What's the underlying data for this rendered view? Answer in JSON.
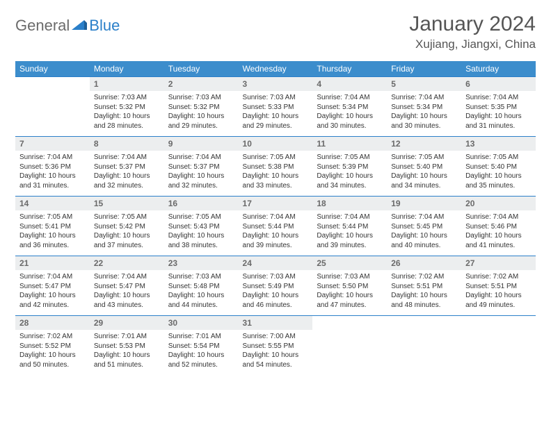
{
  "brand": {
    "part1": "General",
    "part2": "Blue",
    "icon_color": "#2a7fc9",
    "text_color_1": "#6b6b6b"
  },
  "title": "January 2024",
  "location": "Xujiang, Jiangxi, China",
  "colors": {
    "header_bg": "#3c8dcc",
    "header_fg": "#ffffff",
    "daynum_bg": "#eceeef",
    "daynum_fg": "#6a6a6a",
    "rule": "#2a7fc9",
    "body_text": "#333333",
    "background": "#ffffff"
  },
  "typography": {
    "title_fontsize": 30,
    "location_fontsize": 17,
    "header_fontsize": 12,
    "daynum_fontsize": 12,
    "cell_fontsize": 10
  },
  "weekdays": [
    "Sunday",
    "Monday",
    "Tuesday",
    "Wednesday",
    "Thursday",
    "Friday",
    "Saturday"
  ],
  "start_offset": 1,
  "days": [
    {
      "n": "1",
      "sunrise": "7:03 AM",
      "sunset": "5:32 PM",
      "daylight": "10 hours and 28 minutes."
    },
    {
      "n": "2",
      "sunrise": "7:03 AM",
      "sunset": "5:32 PM",
      "daylight": "10 hours and 29 minutes."
    },
    {
      "n": "3",
      "sunrise": "7:03 AM",
      "sunset": "5:33 PM",
      "daylight": "10 hours and 29 minutes."
    },
    {
      "n": "4",
      "sunrise": "7:04 AM",
      "sunset": "5:34 PM",
      "daylight": "10 hours and 30 minutes."
    },
    {
      "n": "5",
      "sunrise": "7:04 AM",
      "sunset": "5:34 PM",
      "daylight": "10 hours and 30 minutes."
    },
    {
      "n": "6",
      "sunrise": "7:04 AM",
      "sunset": "5:35 PM",
      "daylight": "10 hours and 31 minutes."
    },
    {
      "n": "7",
      "sunrise": "7:04 AM",
      "sunset": "5:36 PM",
      "daylight": "10 hours and 31 minutes."
    },
    {
      "n": "8",
      "sunrise": "7:04 AM",
      "sunset": "5:37 PM",
      "daylight": "10 hours and 32 minutes."
    },
    {
      "n": "9",
      "sunrise": "7:04 AM",
      "sunset": "5:37 PM",
      "daylight": "10 hours and 32 minutes."
    },
    {
      "n": "10",
      "sunrise": "7:05 AM",
      "sunset": "5:38 PM",
      "daylight": "10 hours and 33 minutes."
    },
    {
      "n": "11",
      "sunrise": "7:05 AM",
      "sunset": "5:39 PM",
      "daylight": "10 hours and 34 minutes."
    },
    {
      "n": "12",
      "sunrise": "7:05 AM",
      "sunset": "5:40 PM",
      "daylight": "10 hours and 34 minutes."
    },
    {
      "n": "13",
      "sunrise": "7:05 AM",
      "sunset": "5:40 PM",
      "daylight": "10 hours and 35 minutes."
    },
    {
      "n": "14",
      "sunrise": "7:05 AM",
      "sunset": "5:41 PM",
      "daylight": "10 hours and 36 minutes."
    },
    {
      "n": "15",
      "sunrise": "7:05 AM",
      "sunset": "5:42 PM",
      "daylight": "10 hours and 37 minutes."
    },
    {
      "n": "16",
      "sunrise": "7:05 AM",
      "sunset": "5:43 PM",
      "daylight": "10 hours and 38 minutes."
    },
    {
      "n": "17",
      "sunrise": "7:04 AM",
      "sunset": "5:44 PM",
      "daylight": "10 hours and 39 minutes."
    },
    {
      "n": "18",
      "sunrise": "7:04 AM",
      "sunset": "5:44 PM",
      "daylight": "10 hours and 39 minutes."
    },
    {
      "n": "19",
      "sunrise": "7:04 AM",
      "sunset": "5:45 PM",
      "daylight": "10 hours and 40 minutes."
    },
    {
      "n": "20",
      "sunrise": "7:04 AM",
      "sunset": "5:46 PM",
      "daylight": "10 hours and 41 minutes."
    },
    {
      "n": "21",
      "sunrise": "7:04 AM",
      "sunset": "5:47 PM",
      "daylight": "10 hours and 42 minutes."
    },
    {
      "n": "22",
      "sunrise": "7:04 AM",
      "sunset": "5:47 PM",
      "daylight": "10 hours and 43 minutes."
    },
    {
      "n": "23",
      "sunrise": "7:03 AM",
      "sunset": "5:48 PM",
      "daylight": "10 hours and 44 minutes."
    },
    {
      "n": "24",
      "sunrise": "7:03 AM",
      "sunset": "5:49 PM",
      "daylight": "10 hours and 46 minutes."
    },
    {
      "n": "25",
      "sunrise": "7:03 AM",
      "sunset": "5:50 PM",
      "daylight": "10 hours and 47 minutes."
    },
    {
      "n": "26",
      "sunrise": "7:02 AM",
      "sunset": "5:51 PM",
      "daylight": "10 hours and 48 minutes."
    },
    {
      "n": "27",
      "sunrise": "7:02 AM",
      "sunset": "5:51 PM",
      "daylight": "10 hours and 49 minutes."
    },
    {
      "n": "28",
      "sunrise": "7:02 AM",
      "sunset": "5:52 PM",
      "daylight": "10 hours and 50 minutes."
    },
    {
      "n": "29",
      "sunrise": "7:01 AM",
      "sunset": "5:53 PM",
      "daylight": "10 hours and 51 minutes."
    },
    {
      "n": "30",
      "sunrise": "7:01 AM",
      "sunset": "5:54 PM",
      "daylight": "10 hours and 52 minutes."
    },
    {
      "n": "31",
      "sunrise": "7:00 AM",
      "sunset": "5:55 PM",
      "daylight": "10 hours and 54 minutes."
    }
  ],
  "labels": {
    "sunrise": "Sunrise:",
    "sunset": "Sunset:",
    "daylight": "Daylight:"
  }
}
